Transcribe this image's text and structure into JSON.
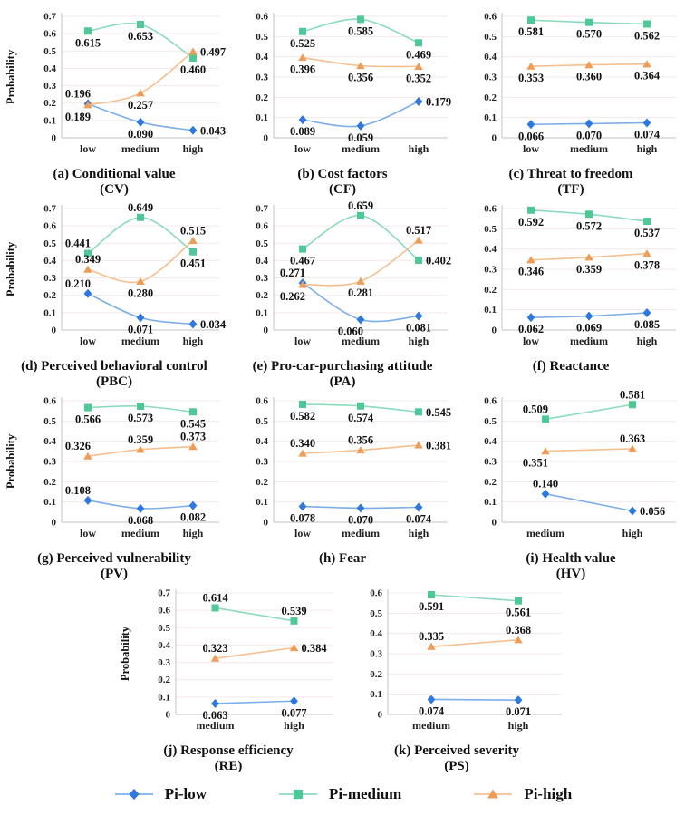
{
  "figure": {
    "ylabel": "Probability"
  },
  "colors": {
    "pi_low": {
      "marker": "#2e78df",
      "line": "#7daee8"
    },
    "pi_medium": {
      "marker": "#4fc898",
      "line": "#8bdbbc"
    },
    "pi_high": {
      "marker": "#ef9c57",
      "line": "#f6bf90"
    }
  },
  "legend": {
    "items": [
      {
        "label": "Pi-low",
        "marker": "diamond",
        "color_key": "pi_low"
      },
      {
        "label": "Pi-medium",
        "marker": "square",
        "color_key": "pi_medium"
      },
      {
        "label": "Pi-high",
        "marker": "triangle",
        "color_key": "pi_high"
      }
    ]
  },
  "layout": {
    "rows": [
      3,
      3,
      3,
      2
    ],
    "grid": true,
    "legend_position": "bottom"
  },
  "chart_data": [
    {
      "id": "cv",
      "type": "line",
      "title": "(a) Conditional value",
      "subtitle": "(CV)",
      "has_ylabel": true,
      "ymax": 0.7,
      "categories": [
        "low",
        "medium",
        "high"
      ],
      "series": [
        {
          "name": "Pi-low",
          "color_key": "pi_low",
          "marker": "diamond",
          "values": [
            0.196,
            0.09,
            0.043
          ],
          "label_pos": [
            "al",
            "b",
            "r"
          ]
        },
        {
          "name": "Pi-medium",
          "color_key": "pi_medium",
          "marker": "square",
          "values": [
            0.615,
            0.653,
            0.46
          ],
          "label_pos": [
            "b",
            "b",
            "b"
          ]
        },
        {
          "name": "Pi-high",
          "color_key": "pi_high",
          "marker": "triangle",
          "values": [
            0.189,
            0.257,
            0.497
          ],
          "label_pos": [
            "bl",
            "b",
            "r"
          ]
        }
      ]
    },
    {
      "id": "cf",
      "type": "line",
      "title": "(b) Cost factors",
      "subtitle": "(CF)",
      "has_ylabel": false,
      "ymax": 0.6,
      "categories": [
        "low",
        "medium",
        "high"
      ],
      "series": [
        {
          "name": "Pi-low",
          "color_key": "pi_low",
          "marker": "diamond",
          "values": [
            0.089,
            0.059,
            0.179
          ],
          "label_pos": [
            "b",
            "b",
            "r"
          ]
        },
        {
          "name": "Pi-medium",
          "color_key": "pi_medium",
          "marker": "square",
          "values": [
            0.525,
            0.585,
            0.469
          ],
          "label_pos": [
            "b",
            "b",
            "b"
          ]
        },
        {
          "name": "Pi-high",
          "color_key": "pi_high",
          "marker": "triangle",
          "values": [
            0.396,
            0.356,
            0.352
          ],
          "label_pos": [
            "b",
            "b",
            "b"
          ]
        }
      ]
    },
    {
      "id": "tf",
      "type": "line",
      "title": "(c) Threat to freedom",
      "subtitle": "(TF)",
      "has_ylabel": false,
      "ymax": 0.6,
      "categories": [
        "low",
        "medium",
        "high"
      ],
      "series": [
        {
          "name": "Pi-low",
          "color_key": "pi_low",
          "marker": "diamond",
          "values": [
            0.066,
            0.07,
            0.074
          ],
          "label_pos": [
            "b",
            "b",
            "b"
          ]
        },
        {
          "name": "Pi-medium",
          "color_key": "pi_medium",
          "marker": "square",
          "values": [
            0.581,
            0.57,
            0.562
          ],
          "label_pos": [
            "b",
            "b",
            "b"
          ]
        },
        {
          "name": "Pi-high",
          "color_key": "pi_high",
          "marker": "triangle",
          "values": [
            0.353,
            0.36,
            0.364
          ],
          "label_pos": [
            "b",
            "b",
            "b"
          ]
        }
      ]
    },
    {
      "id": "pbc",
      "type": "line",
      "title": "(d) Perceived behavioral control",
      "subtitle": "(PBC)",
      "has_ylabel": true,
      "ymax": 0.7,
      "categories": [
        "low",
        "medium",
        "high"
      ],
      "series": [
        {
          "name": "Pi-low",
          "color_key": "pi_low",
          "marker": "diamond",
          "values": [
            0.21,
            0.071,
            0.034
          ],
          "label_pos": [
            "al",
            "b",
            "r"
          ]
        },
        {
          "name": "Pi-medium",
          "color_key": "pi_medium",
          "marker": "square",
          "values": [
            0.441,
            0.649,
            0.451
          ],
          "label_pos": [
            "al",
            "a",
            "b"
          ]
        },
        {
          "name": "Pi-high",
          "color_key": "pi_high",
          "marker": "triangle",
          "values": [
            0.349,
            0.28,
            0.515
          ],
          "label_pos": [
            "a",
            "b",
            "a"
          ]
        }
      ]
    },
    {
      "id": "pa",
      "type": "line",
      "title": "(e) Pro-car-purchasing attitude",
      "subtitle": "(PA)",
      "has_ylabel": false,
      "ymax": 0.7,
      "categories": [
        "low",
        "medium",
        "high"
      ],
      "series": [
        {
          "name": "Pi-low",
          "color_key": "pi_low",
          "marker": "diamond",
          "values": [
            0.271,
            0.06,
            0.081
          ],
          "label_pos": [
            "al",
            "bl",
            "b"
          ]
        },
        {
          "name": "Pi-medium",
          "color_key": "pi_medium",
          "marker": "square",
          "values": [
            0.467,
            0.659,
            0.402
          ],
          "label_pos": [
            "b",
            "a",
            "r"
          ]
        },
        {
          "name": "Pi-high",
          "color_key": "pi_high",
          "marker": "triangle",
          "values": [
            0.262,
            0.281,
            0.517
          ],
          "label_pos": [
            "bl",
            "b",
            "a"
          ]
        }
      ]
    },
    {
      "id": "reactance",
      "type": "line",
      "title": "(f) Reactance",
      "subtitle": "",
      "has_ylabel": false,
      "ymax": 0.6,
      "categories": [
        "low",
        "medium",
        "high"
      ],
      "series": [
        {
          "name": "Pi-low",
          "color_key": "pi_low",
          "marker": "diamond",
          "values": [
            0.062,
            0.069,
            0.085
          ],
          "label_pos": [
            "b",
            "b",
            "b"
          ]
        },
        {
          "name": "Pi-medium",
          "color_key": "pi_medium",
          "marker": "square",
          "values": [
            0.592,
            0.572,
            0.537
          ],
          "label_pos": [
            "b",
            "b",
            "b"
          ]
        },
        {
          "name": "Pi-high",
          "color_key": "pi_high",
          "marker": "triangle",
          "values": [
            0.346,
            0.359,
            0.378
          ],
          "label_pos": [
            "b",
            "b",
            "b"
          ]
        }
      ]
    },
    {
      "id": "pv",
      "type": "line",
      "title": "(g) Perceived vulnerability",
      "subtitle": "(PV)",
      "has_ylabel": true,
      "ymax": 0.6,
      "categories": [
        "low",
        "medium",
        "high"
      ],
      "series": [
        {
          "name": "Pi-low",
          "color_key": "pi_low",
          "marker": "diamond",
          "values": [
            0.108,
            0.068,
            0.082
          ],
          "label_pos": [
            "al",
            "b",
            "b"
          ]
        },
        {
          "name": "Pi-medium",
          "color_key": "pi_medium",
          "marker": "square",
          "values": [
            0.566,
            0.573,
            0.545
          ],
          "label_pos": [
            "b",
            "b",
            "b"
          ]
        },
        {
          "name": "Pi-high",
          "color_key": "pi_high",
          "marker": "triangle",
          "values": [
            0.326,
            0.359,
            0.373
          ],
          "label_pos": [
            "al",
            "a",
            "a"
          ]
        }
      ]
    },
    {
      "id": "fear",
      "type": "line",
      "title": "(h) Fear",
      "subtitle": "",
      "has_ylabel": false,
      "ymax": 0.6,
      "categories": [
        "low",
        "medium",
        "high"
      ],
      "series": [
        {
          "name": "Pi-low",
          "color_key": "pi_low",
          "marker": "diamond",
          "values": [
            0.078,
            0.07,
            0.074
          ],
          "label_pos": [
            "b",
            "b",
            "b"
          ]
        },
        {
          "name": "Pi-medium",
          "color_key": "pi_medium",
          "marker": "square",
          "values": [
            0.582,
            0.574,
            0.545
          ],
          "label_pos": [
            "b",
            "b",
            "r"
          ]
        },
        {
          "name": "Pi-high",
          "color_key": "pi_high",
          "marker": "triangle",
          "values": [
            0.34,
            0.356,
            0.381
          ],
          "label_pos": [
            "a",
            "a",
            "r"
          ]
        }
      ]
    },
    {
      "id": "hv",
      "type": "line",
      "title": "(i) Health value",
      "subtitle": "(HV)",
      "has_ylabel": false,
      "ymax": 0.6,
      "categories": [
        "medium",
        "high"
      ],
      "series": [
        {
          "name": "Pi-low",
          "color_key": "pi_low",
          "marker": "diamond",
          "values": [
            0.14,
            0.056
          ],
          "label_pos": [
            "a",
            "r"
          ]
        },
        {
          "name": "Pi-medium",
          "color_key": "pi_medium",
          "marker": "square",
          "values": [
            0.509,
            0.581
          ],
          "label_pos": [
            "al",
            "a"
          ]
        },
        {
          "name": "Pi-high",
          "color_key": "pi_high",
          "marker": "triangle",
          "values": [
            0.351,
            0.363
          ],
          "label_pos": [
            "bl",
            "a"
          ]
        }
      ]
    },
    {
      "id": "re",
      "type": "line",
      "title": "(j) Response efficiency",
      "subtitle": "(RE)",
      "has_ylabel": true,
      "ymax": 0.7,
      "categories": [
        "medium",
        "high"
      ],
      "series": [
        {
          "name": "Pi-low",
          "color_key": "pi_low",
          "marker": "diamond",
          "values": [
            0.063,
            0.077
          ],
          "label_pos": [
            "b",
            "b"
          ]
        },
        {
          "name": "Pi-medium",
          "color_key": "pi_medium",
          "marker": "square",
          "values": [
            0.614,
            0.539
          ],
          "label_pos": [
            "a",
            "a"
          ]
        },
        {
          "name": "Pi-high",
          "color_key": "pi_high",
          "marker": "triangle",
          "values": [
            0.323,
            0.384
          ],
          "label_pos": [
            "a",
            "r"
          ]
        }
      ]
    },
    {
      "id": "ps",
      "type": "line",
      "title": "(k) Perceived severity",
      "subtitle": "(PS)",
      "has_ylabel": false,
      "ymax": 0.6,
      "categories": [
        "medium",
        "high"
      ],
      "series": [
        {
          "name": "Pi-low",
          "color_key": "pi_low",
          "marker": "diamond",
          "values": [
            0.074,
            0.071
          ],
          "label_pos": [
            "b",
            "b"
          ]
        },
        {
          "name": "Pi-medium",
          "color_key": "pi_medium",
          "marker": "square",
          "values": [
            0.591,
            0.561
          ],
          "label_pos": [
            "b",
            "b"
          ]
        },
        {
          "name": "Pi-high",
          "color_key": "pi_high",
          "marker": "triangle",
          "values": [
            0.335,
            0.368
          ],
          "label_pos": [
            "a",
            "a"
          ]
        }
      ]
    }
  ]
}
